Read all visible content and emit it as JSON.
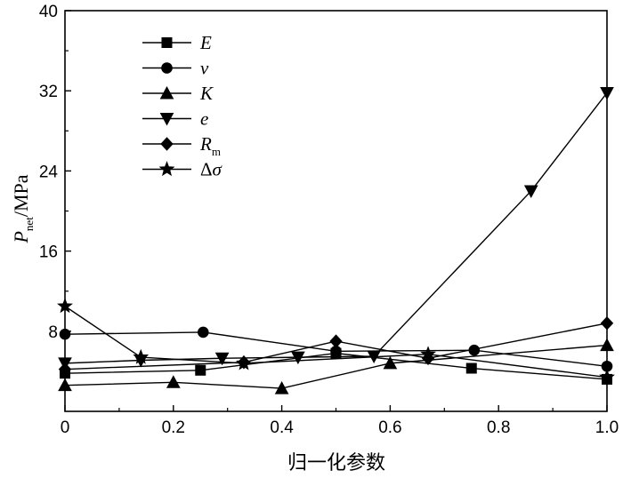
{
  "chart_data": {
    "type": "line",
    "xlabel": "归一化参数",
    "ylabel": {
      "main": "P",
      "sub": "net",
      "unit": "/MPa"
    },
    "xlim": [
      0,
      1.0
    ],
    "ylim": [
      0,
      40
    ],
    "xticks": [
      0,
      0.2,
      0.4,
      0.6,
      0.8,
      1.0
    ],
    "xtick_labels": [
      "0",
      "0.2",
      "0.4",
      "0.6",
      "0.8",
      "1.0"
    ],
    "yticks": [
      8,
      16,
      24,
      32,
      40
    ],
    "ytick_labels": [
      "8",
      "16",
      "24",
      "32",
      "40"
    ],
    "legend_position": "top-left",
    "grid": false,
    "series": [
      {
        "name": "E",
        "marker": "square",
        "x": [
          0,
          0.25,
          0.5,
          0.75,
          1.0
        ],
        "y": [
          3.8,
          4.1,
          5.8,
          4.3,
          3.2
        ]
      },
      {
        "name": "ν",
        "marker": "circle",
        "x": [
          0,
          0.255,
          0.5,
          0.755,
          1.0
        ],
        "y": [
          7.7,
          7.9,
          6.0,
          6.1,
          4.5
        ]
      },
      {
        "name": "K",
        "marker": "triangle-up",
        "x": [
          0,
          0.2,
          0.4,
          0.6,
          1.0
        ],
        "y": [
          2.6,
          2.9,
          2.3,
          4.8,
          6.6
        ]
      },
      {
        "name": "e",
        "marker": "triangle-down",
        "x": [
          0,
          0.14,
          0.29,
          0.43,
          0.57,
          0.86,
          1.0
        ],
        "y": [
          4.8,
          5.1,
          5.3,
          5.4,
          5.5,
          22.0,
          31.8
        ]
      },
      {
        "name": "Rm",
        "name_base": "R",
        "name_sub": "m",
        "marker": "diamond",
        "x": [
          0,
          0.33,
          0.5,
          0.67,
          1.0
        ],
        "y": [
          4.2,
          4.9,
          7.0,
          5.3,
          8.8
        ]
      },
      {
        "name": "Δσ",
        "marker": "star",
        "x": [
          0,
          0.14,
          0.33,
          0.67,
          1.0
        ],
        "y": [
          10.5,
          5.4,
          4.8,
          5.7,
          3.4
        ]
      }
    ]
  }
}
